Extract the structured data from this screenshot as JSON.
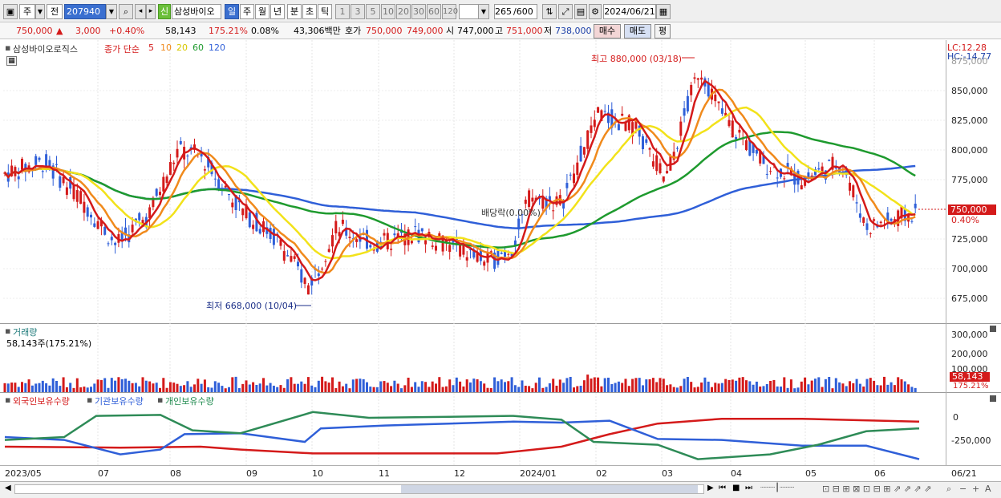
{
  "toolbar": {
    "type_label": "주",
    "prev_label": "전",
    "code": "207940",
    "stock_name": "삼성바이오",
    "credit_badge": "신",
    "periods": [
      "일",
      "주",
      "월",
      "년",
      "분",
      "초",
      "틱"
    ],
    "period_numbers": [
      "1",
      "3",
      "5",
      "10",
      "20",
      "30",
      "60",
      "120"
    ],
    "count": "265",
    "count_total": "/600",
    "date": "2024/06/21"
  },
  "quote": {
    "price": "750,000",
    "change": "3,000",
    "change_pct": "+0.40%",
    "volume": "58,143",
    "volume_ratio": "175.21%",
    "turnover": "0.08%",
    "trade_value": "43,306백만",
    "ask_label": "호가",
    "ask": "750,000",
    "bid": "749,000",
    "open_label": "시",
    "open": "747,000",
    "high_label": "고",
    "high": "751,000",
    "low_label": "저",
    "low": "738,000",
    "buy_label": "매수",
    "sell_label": "매도",
    "eval_label": "평"
  },
  "main_chart": {
    "title": "삼성바이오로직스",
    "legend_prefix": "종가 단순",
    "ma_labels": [
      "5",
      "10",
      "20",
      "60",
      "120"
    ],
    "lc": "LC:12.28",
    "hc": "HC:-14.77",
    "high_annotation": "최고 880,000 (03/18)",
    "low_annotation": "최저 668,000 (10/04)",
    "dividend_annotation": "배당락(0.00%)",
    "y_ticks": [
      "875,000",
      "850,000",
      "825,000",
      "800,000",
      "775,000",
      "750,000",
      "725,000",
      "700,000",
      "675,000"
    ],
    "current_price_tag": "750,000",
    "current_pct_tag": "0.40%"
  },
  "volume_chart": {
    "title": "거래량",
    "value_label": "58,143주(175.21%)",
    "y_ticks": [
      "300,000",
      "200,000",
      "100,000"
    ],
    "current_tag": "58,143",
    "current_pct": "175.21%"
  },
  "holdings_chart": {
    "legend": [
      "외국인보유수량",
      "기관보유수량",
      "개인보유수량"
    ],
    "y_ticks": [
      "0",
      "-250,000"
    ]
  },
  "x_ticks": [
    "2023/05",
    "07",
    "08",
    "09",
    "10",
    "11",
    "12",
    "2024/01",
    "02",
    "03",
    "04",
    "05",
    "06",
    "06/21"
  ],
  "colors": {
    "ma5": "#d41a1a",
    "ma10": "#f08a1c",
    "ma20": "#f2e21a",
    "ma60": "#1e9a2e",
    "ma120": "#2f5fd8",
    "up": "#d41a1a",
    "down": "#2f5fd8"
  }
}
